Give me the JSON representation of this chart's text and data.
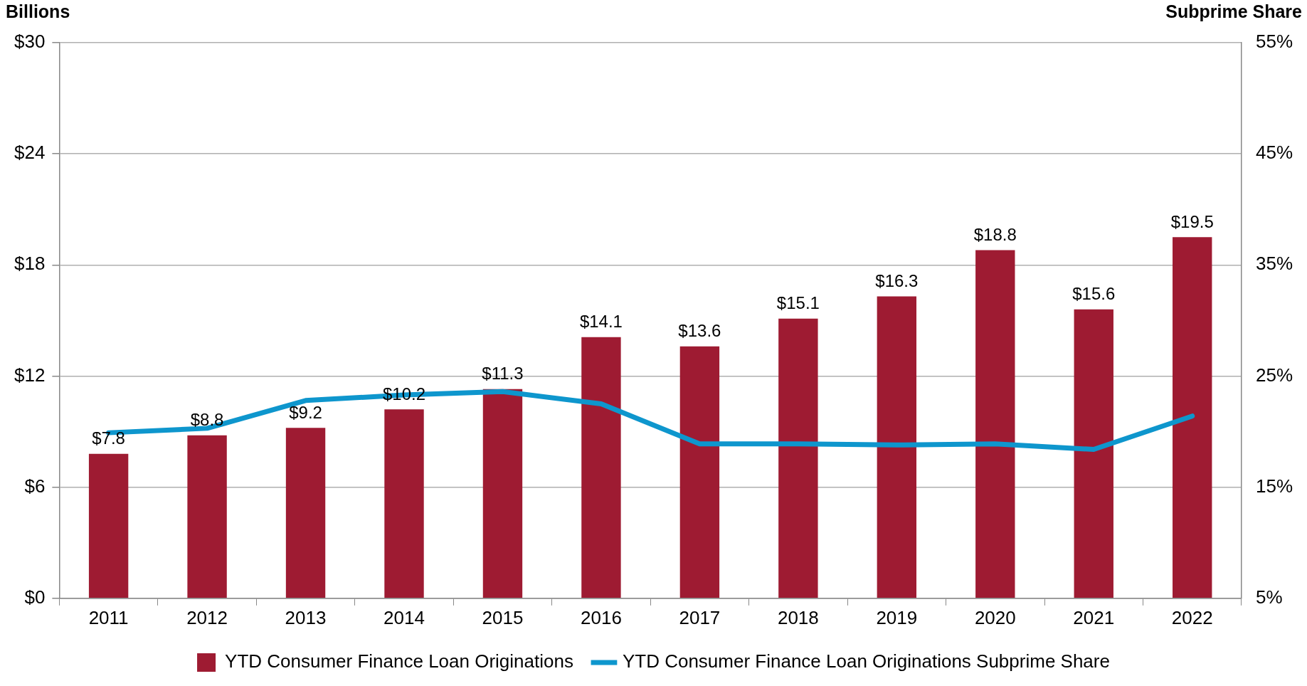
{
  "chart_data": {
    "type": "bar",
    "ylabel": "Billions",
    "y2label": "Subprime Share",
    "categories": [
      "2011",
      "2012",
      "2013",
      "2014",
      "2015",
      "2016",
      "2017",
      "2018",
      "2019",
      "2020",
      "2021",
      "2022"
    ],
    "series": [
      {
        "name": "YTD Consumer Finance Loan Originations",
        "color": "#9e1b32",
        "values": [
          7.8,
          8.8,
          9.2,
          10.2,
          11.3,
          14.1,
          13.6,
          15.1,
          16.3,
          18.8,
          15.6,
          19.5
        ],
        "value_labels": [
          "$7.8",
          "$8.8",
          "$9.2",
          "$10.2",
          "$11.3",
          "$14.1",
          "$13.6",
          "$15.1",
          "$16.3",
          "$18.8",
          "$15.6",
          "$19.5"
        ]
      },
      {
        "name": "YTD Consumer Finance Loan Originations Subprime Share",
        "type": "line",
        "axis": "y2",
        "color": "#0e96cd",
        "values": [
          19.9,
          20.3,
          22.8,
          23.3,
          23.6,
          22.5,
          18.9,
          18.9,
          18.8,
          18.9,
          18.4,
          21.4
        ]
      }
    ],
    "ylim": [
      0,
      30
    ],
    "yticks": [
      {
        "value": 0,
        "label": "$0"
      },
      {
        "value": 6,
        "label": "$6"
      },
      {
        "value": 12,
        "label": "$12"
      },
      {
        "value": 18,
        "label": "$18"
      },
      {
        "value": 24,
        "label": "$24"
      },
      {
        "value": 30,
        "label": "$30"
      }
    ],
    "y2lim": [
      5,
      55
    ],
    "y2ticks": [
      {
        "value": 5,
        "label": "5%"
      },
      {
        "value": 15,
        "label": "15%"
      },
      {
        "value": 25,
        "label": "25%"
      },
      {
        "value": 35,
        "label": "35%"
      },
      {
        "value": 45,
        "label": "45%"
      },
      {
        "value": 55,
        "label": "55%"
      }
    ],
    "grid": "y",
    "legend": "bottom",
    "marker": "none",
    "line_style": "solid"
  }
}
